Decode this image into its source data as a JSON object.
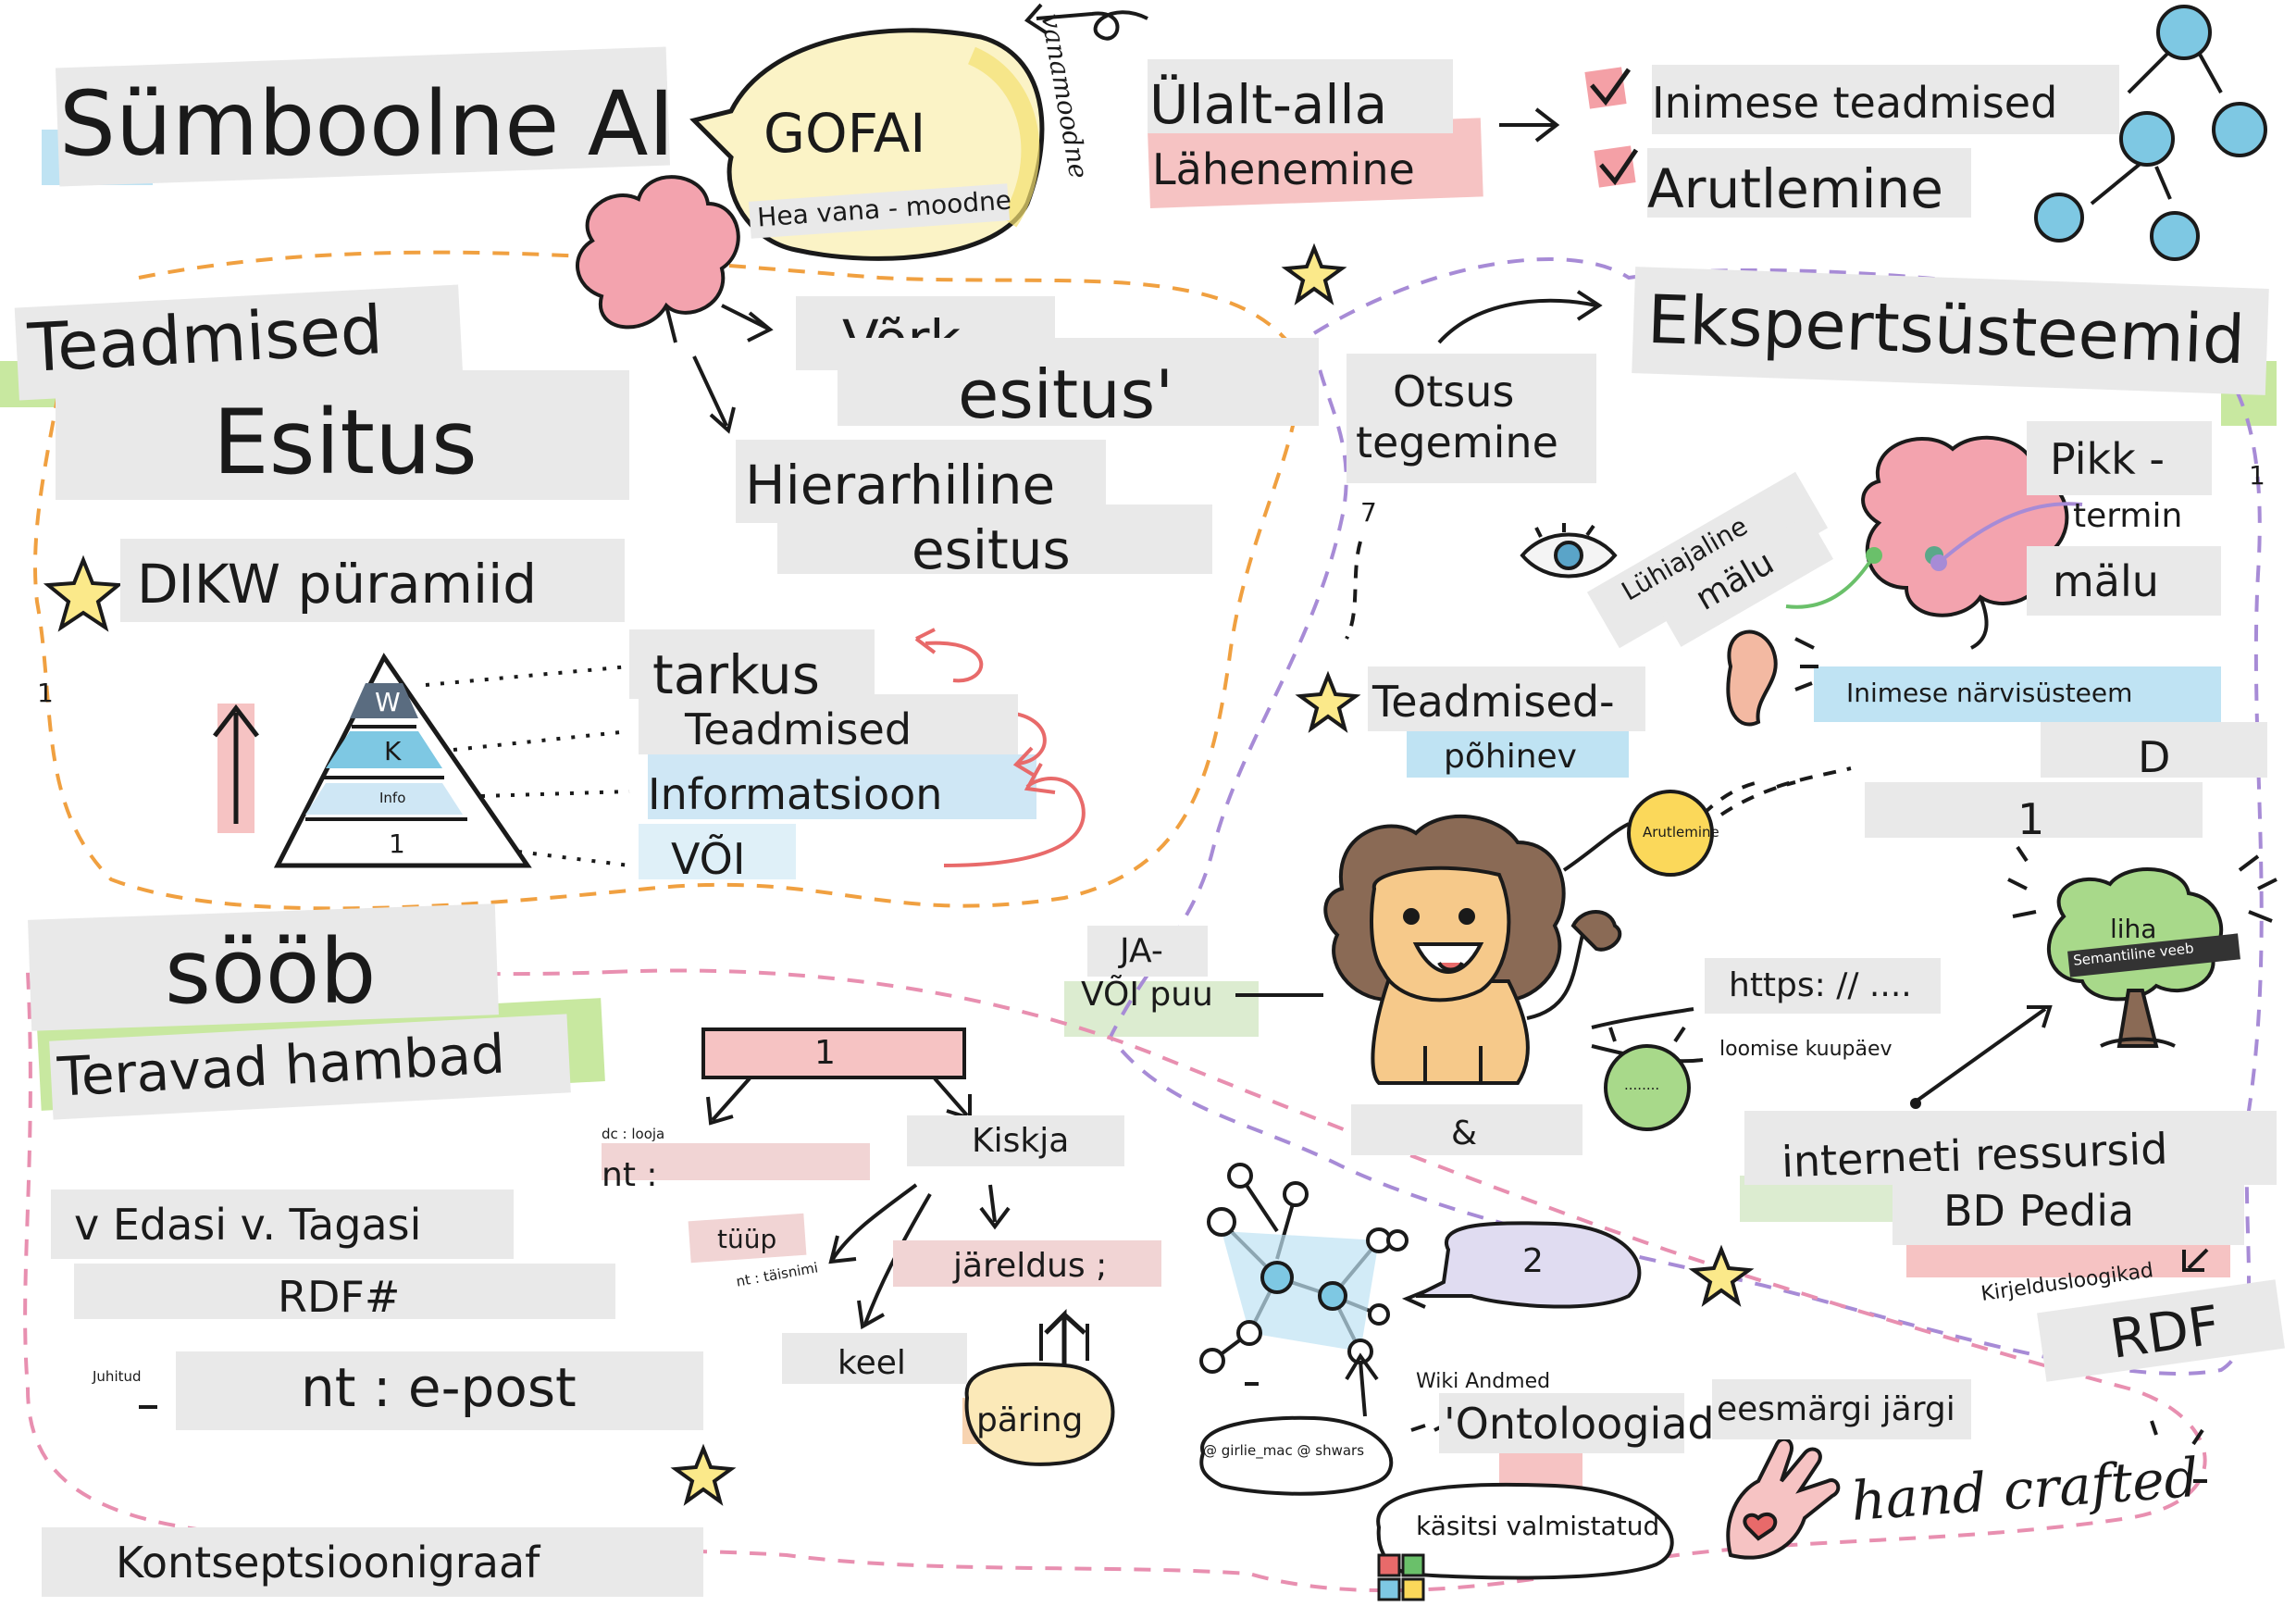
{
  "labels": {
    "title": "Sümboolne AI",
    "gofai": "GOFAI",
    "gofai_sub": "Hea vana - moodne",
    "gofai_arc": "vanamoodne",
    "top_down_1": "Ülalt-alla",
    "top_down_2": "Lähenemine",
    "human_knowledge": "Inimese teadmised",
    "reasoning": "Arutlemine",
    "knowledge": "Teadmised",
    "representation": "Esitus",
    "network": "Võrk",
    "network_repr": "esitus'",
    "hierarchical": "Hierarhiline",
    "hier_repr": "esitus",
    "dikw": "DIKW püramiid",
    "wisdom": "tarkus",
    "knowledge_lvl": "Teadmised",
    "information": "Informatsioon",
    "data_lvl": "VÕI",
    "pyr_w": "W",
    "pyr_k": "K",
    "pyr_i": "Info",
    "pyr_d": "1",
    "side_mark_1": "1",
    "side_mark_2": "1",
    "expert_systems": "Ekspertsüsteemid",
    "decision_1": "Otsus",
    "decision_2": "tegemine",
    "seven": "7",
    "short_term_1": "Lühiajaline",
    "short_term_2": "mälu",
    "long_term_1": "Pikk -",
    "long_term_2": "termin",
    "long_term_3": "mälu",
    "nervous": "Inimese närvisüsteem",
    "kb_1": "Teadmised-",
    "kb_2": "põhinev",
    "d_box": "D",
    "one_box": "1",
    "eats": "sööb",
    "sharp_teeth": "Teravad hambad",
    "forward_back": "v Edasi v. Tagasi",
    "rdf_hash": "RDF#",
    "guided": "Juhitud",
    "email": "nt : e-post",
    "concept_graph": "Kontseptsioonigraaf",
    "tree_root": "1",
    "creator_small": "dc : looja",
    "nt_label": "nt :",
    "predator": "Kiskja",
    "type_label": "tüüp",
    "fullname": "nt : täisnimi",
    "inference": "järeldus ;",
    "language": "keel",
    "query": "päring",
    "and_or_1": "JA-",
    "and_or_2": "VÕI puu",
    "reasoning_small": "Arutlemine",
    "https": "https: // ....",
    "creation_date": "loomise kuupäev",
    "green_ball": "........",
    "amp": "&",
    "meat": "liha",
    "semantic_web": "Semantiline veeb",
    "internet_resources": "interneti ressursid",
    "dbpedia": "BD Pedia",
    "description_logics": "Kirjeldusloogikad",
    "rdf": "RDF",
    "two": "2",
    "wikidata": "Wiki Andmed",
    "ontologies": "'Ontoloogiad",
    "by_goal": "eesmärgi järgi",
    "handcrafted_en": "hand crafted",
    "handcrafted_et": "käsitsi valmistatud",
    "credit": "@ girlie_mac @ shwars"
  },
  "colors": {
    "ink": "#1a1a1a",
    "grey_box": "#e9e9e9",
    "orange_dash": "#f0a040",
    "purple_dash": "#a78bd6",
    "pink_dash": "#e88fb0",
    "blue": "#7ec8e3",
    "pink": "#f4b6b6",
    "yellow": "#fbe98a",
    "green": "#a8d98a",
    "brain_pink": "#f3a3ae",
    "lion_brown": "#8a6a55",
    "lion_body": "#f6c98a"
  }
}
